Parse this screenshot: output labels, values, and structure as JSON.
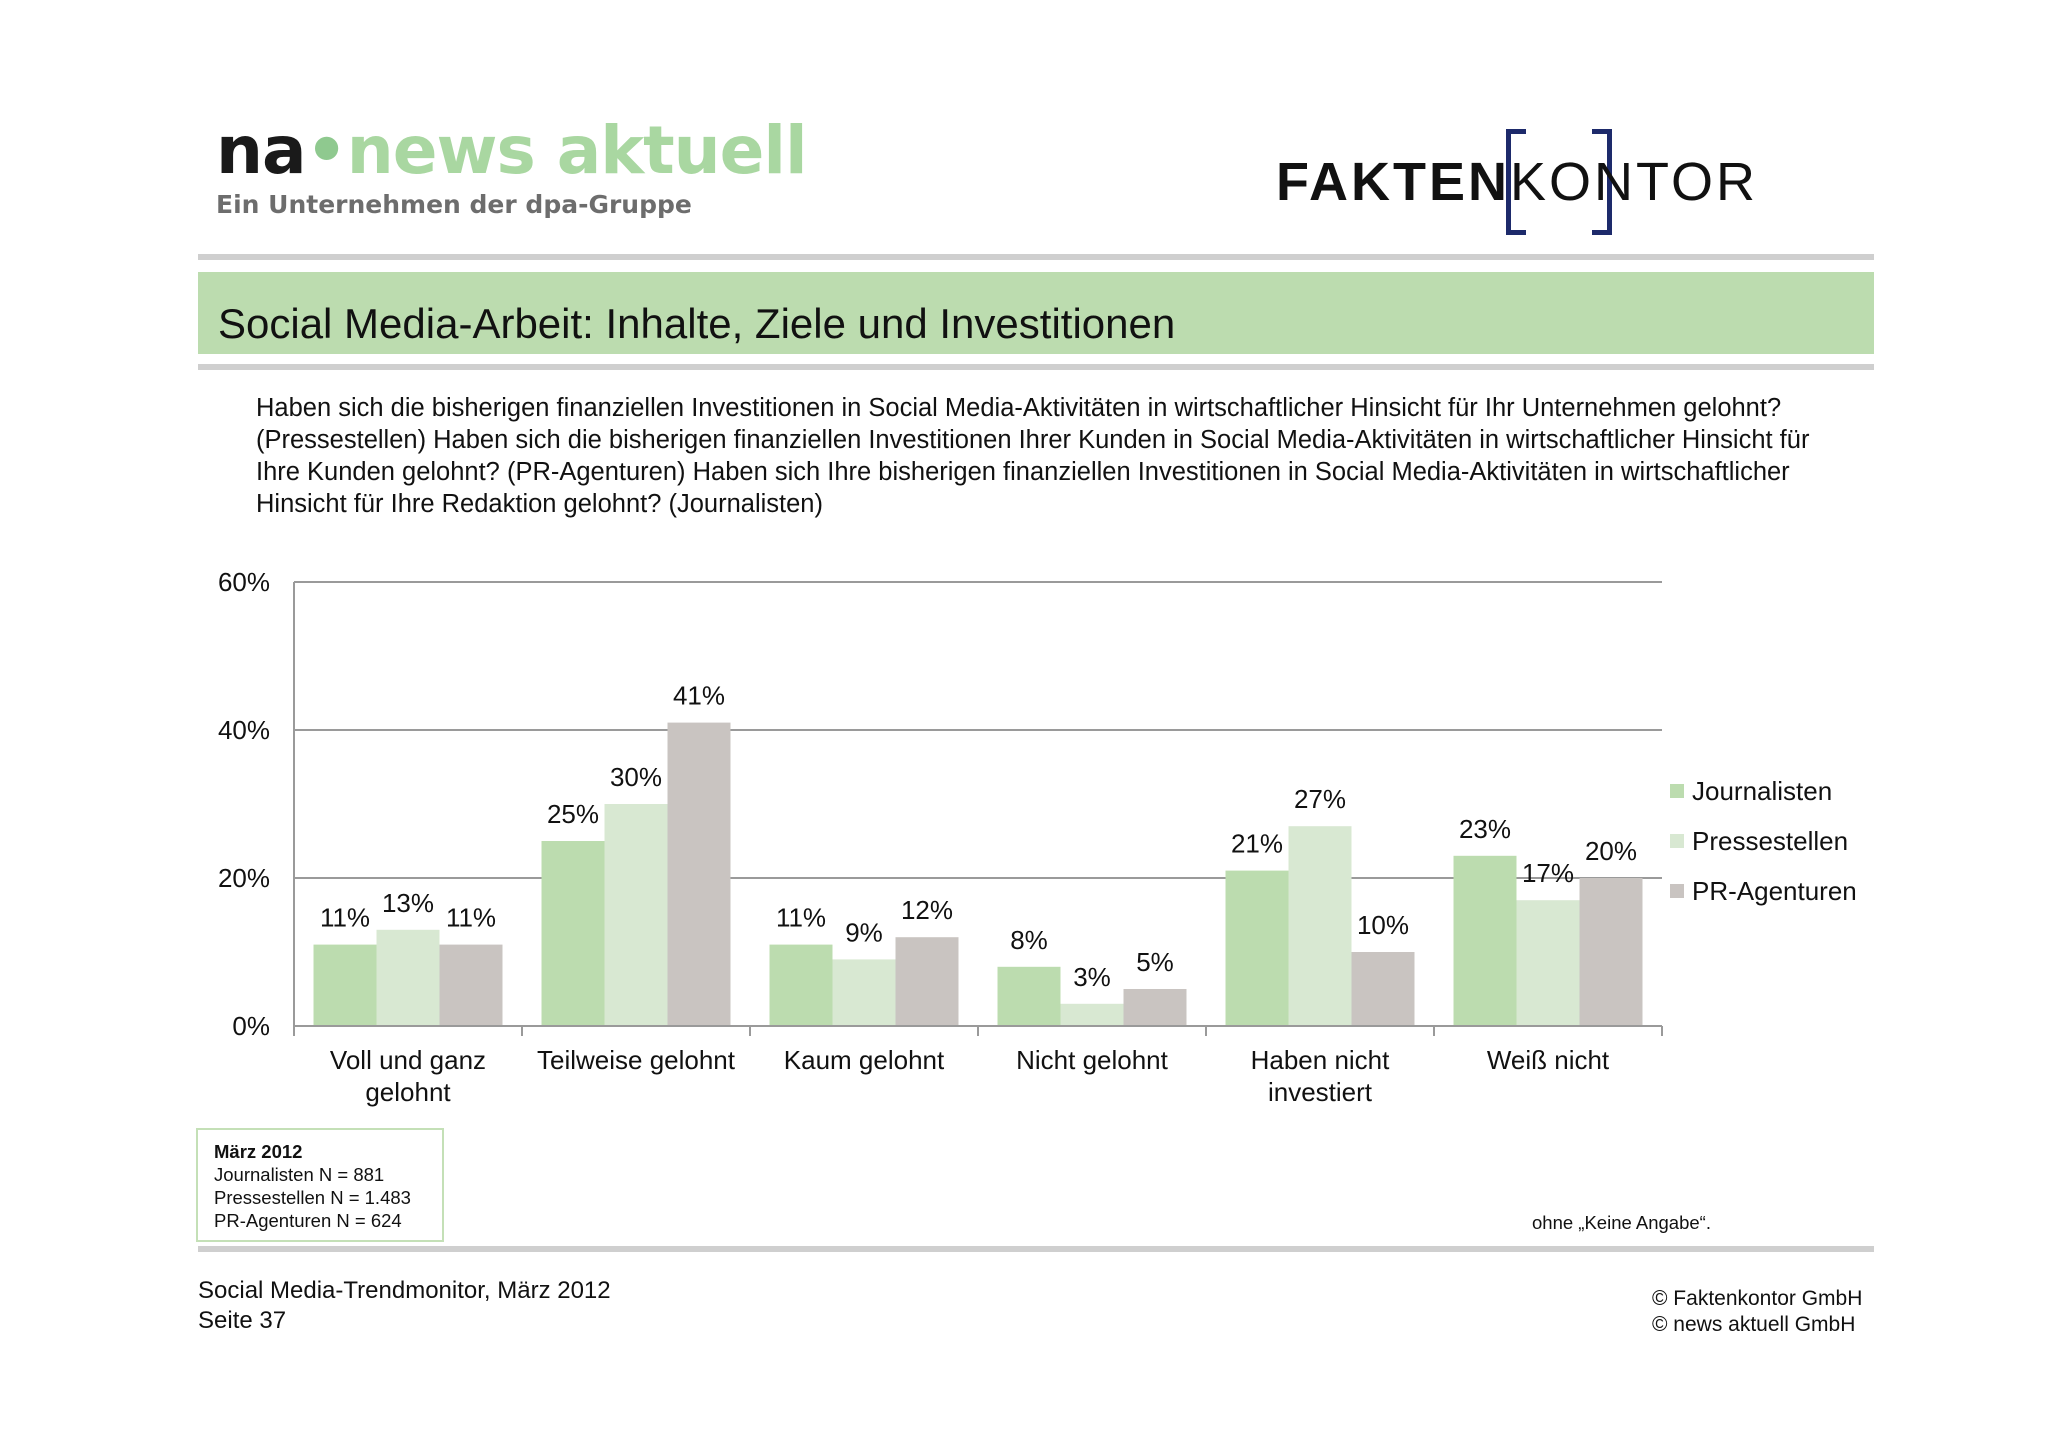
{
  "header": {
    "logo_left": {
      "na": "na",
      "dot": "•",
      "brand": "news aktuell",
      "tagline": "Ein Unternehmen der dpa-Gruppe"
    },
    "logo_right": {
      "part1": "FAKTEN",
      "part2": "KONTOR",
      "frame_color": "#1d2a6b"
    }
  },
  "title": "Social Media-Arbeit: Inhalte, Ziele und Investitionen",
  "question": "Haben sich die bisherigen finanziellen Investitionen in Social Media-Aktivitäten in wirtschaftlicher Hinsicht für Ihr Unternehmen gelohnt? (Pressestellen) Haben sich die bisherigen finanziellen Investitionen Ihrer Kunden in Social Media-Aktivitäten in wirtschaftlicher Hinsicht für Ihre Kunden gelohnt? (PR-Agenturen) Haben sich Ihre bisherigen finanziellen Investitionen in Social Media-Aktivitäten in wirtschaftlicher Hinsicht für Ihre Redaktion gelohnt? (Journalisten)",
  "chart_data": {
    "type": "bar",
    "categories": [
      [
        "Voll und ganz",
        "gelohnt"
      ],
      [
        "Teilweise gelohnt"
      ],
      [
        "Kaum gelohnt"
      ],
      [
        "Nicht gelohnt"
      ],
      [
        "Haben nicht",
        "investiert"
      ],
      [
        "Weiß nicht"
      ]
    ],
    "series": [
      {
        "name": "Journalisten",
        "color": "#bcdcaf",
        "values": [
          11,
          25,
          11,
          8,
          21,
          23
        ]
      },
      {
        "name": "Pressestellen",
        "color": "#d8e8d2",
        "values": [
          13,
          30,
          9,
          3,
          27,
          17
        ]
      },
      {
        "name": "PR-Agenturen",
        "color": "#c9c4c1",
        "values": [
          11,
          41,
          12,
          5,
          10,
          20
        ]
      }
    ],
    "value_suffix": "%",
    "ylim": [
      0,
      60
    ],
    "yticks": [
      "0%",
      "20%",
      "40%",
      "60%"
    ],
    "ytick_values": [
      0,
      20,
      40,
      60
    ],
    "grid": true,
    "legend": "right"
  },
  "sample_note": {
    "heading": "März 2012",
    "lines": [
      "Journalisten N = 881",
      "Pressestellen N = 1.483",
      "PR-Agenturen N = 624"
    ]
  },
  "footnote": "ohne „Keine Angabe“.",
  "footer": {
    "left_line1": "Social Media-Trendmonitor, März 2012",
    "left_line2": "Seite 37",
    "right_line1": "© Faktenkontor GmbH",
    "right_line2": "© news aktuell GmbH"
  }
}
